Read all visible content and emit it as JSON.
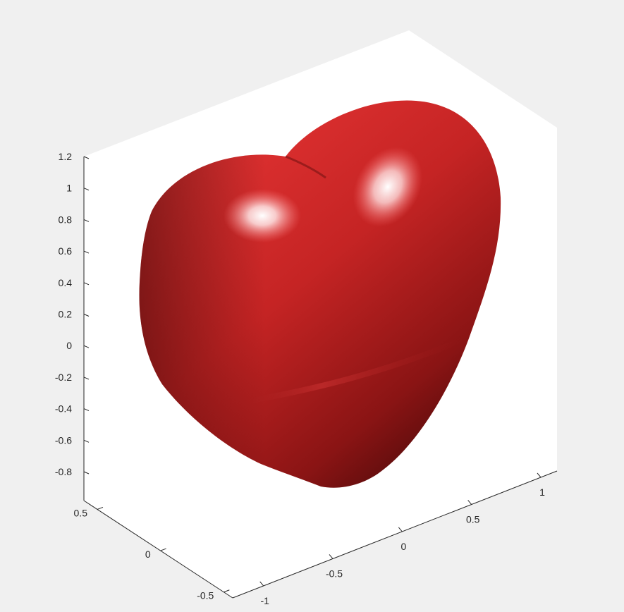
{
  "chart_data": {
    "type": "surface",
    "title": "",
    "xlabel": "",
    "ylabel": "",
    "zlabel": "",
    "x_ticks": [
      "-1",
      "-0.5",
      "0",
      "0.5",
      "1"
    ],
    "y_ticks": [
      "-0.5",
      "0",
      "0.5"
    ],
    "z_ticks": [
      "1.2",
      "1",
      "0.8",
      "0.6",
      "0.4",
      "0.2",
      "0",
      "-0.2",
      "-0.4",
      "-0.6",
      "-0.8"
    ],
    "xlim": [
      -1.1,
      1.1
    ],
    "ylim": [
      -0.7,
      0.7
    ],
    "zlim": [
      -1.0,
      1.2
    ],
    "grid": false,
    "shape": "heart",
    "surface_color": "#d42a2a",
    "background_color": "#f0f0f0",
    "axes_color": "#ffffff"
  }
}
